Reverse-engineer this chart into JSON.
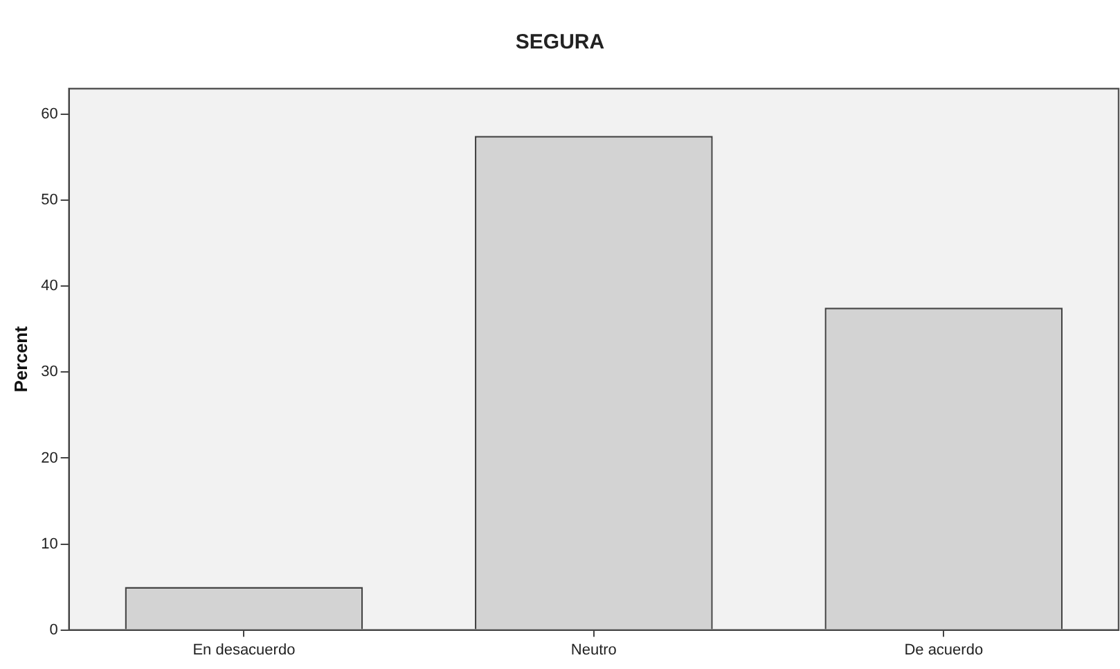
{
  "chart_data": {
    "type": "bar",
    "title": "SEGURA",
    "ylabel": "Percent",
    "categories": [
      "En desacuerdo",
      "Neutro",
      "De acuerdo"
    ],
    "values": [
      5,
      57.5,
      37.5
    ],
    "color": "#d3d3d3",
    "ylim": [
      0,
      63
    ],
    "yticks": [
      0,
      10,
      20,
      30,
      40,
      50,
      60
    ]
  }
}
